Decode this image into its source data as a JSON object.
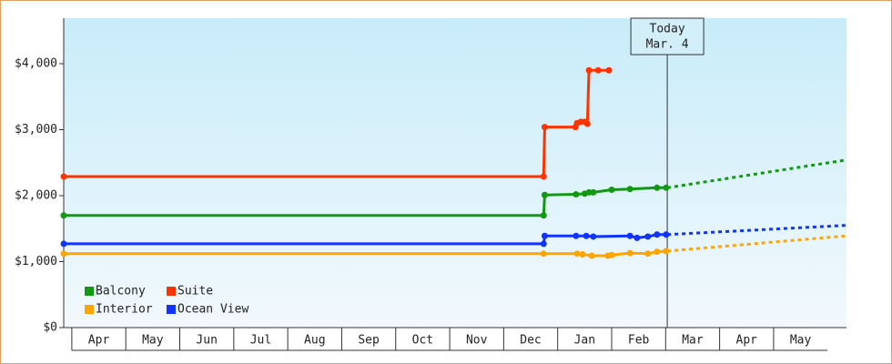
{
  "chart_data": {
    "type": "line",
    "xlim": [
      -0.15,
      14.35
    ],
    "ylim": [
      0,
      4690
    ],
    "yticks": [
      {
        "value": 0,
        "label": "$0"
      },
      {
        "value": 1000,
        "label": "$1,000"
      },
      {
        "value": 2000,
        "label": "$2,000"
      },
      {
        "value": 3000,
        "label": "$3,000"
      },
      {
        "value": 4000,
        "label": "$4,000"
      }
    ],
    "xticks": [
      {
        "value": 0.5,
        "label": "Apr"
      },
      {
        "value": 1.5,
        "label": "May"
      },
      {
        "value": 2.5,
        "label": "Jun"
      },
      {
        "value": 3.5,
        "label": "Jul"
      },
      {
        "value": 4.5,
        "label": "Aug"
      },
      {
        "value": 5.5,
        "label": "Sep"
      },
      {
        "value": 6.5,
        "label": "Oct"
      },
      {
        "value": 7.5,
        "label": "Nov"
      },
      {
        "value": 8.5,
        "label": "Dec"
      },
      {
        "value": 9.5,
        "label": "Jan"
      },
      {
        "value": 10.5,
        "label": "Feb"
      },
      {
        "value": 11.5,
        "label": "Mar"
      },
      {
        "value": 12.5,
        "label": "Apr"
      },
      {
        "value": 13.5,
        "label": "May"
      }
    ],
    "legend": "bottom-left",
    "annotation": {
      "lines": [
        "Today",
        "Mar. 4"
      ],
      "x": 11.03
    },
    "series": [
      {
        "name": "Balcony",
        "color": "#119911",
        "x": [
          -0.15,
          8.74,
          8.76,
          9.34,
          9.5,
          9.58,
          9.66,
          10.0,
          10.34,
          10.84,
          11.01
        ],
        "values": [
          1700,
          1700,
          2010,
          2020,
          2030,
          2050,
          2050,
          2090,
          2100,
          2120,
          2120
        ],
        "forecast": {
          "x": [
            11.03,
            14.34
          ],
          "values": [
            2120,
            2540
          ]
        }
      },
      {
        "name": "Suite",
        "color": "#ff3300",
        "x": [
          -0.15,
          8.74,
          8.76,
          9.33,
          9.36,
          9.43,
          9.5,
          9.55,
          9.58,
          9.75,
          9.95
        ],
        "values": [
          2290,
          2290,
          3040,
          3040,
          3100,
          3120,
          3120,
          3090,
          3900,
          3900,
          3900
        ]
      },
      {
        "name": "Interior",
        "color": "#ffa500",
        "x": [
          -0.15,
          8.74,
          9.36,
          9.46,
          9.63,
          9.93,
          10.0,
          10.34,
          10.67,
          10.84,
          11.01
        ],
        "values": [
          1120,
          1120,
          1120,
          1110,
          1090,
          1090,
          1100,
          1130,
          1120,
          1150,
          1160
        ],
        "forecast": {
          "x": [
            11.03,
            14.34
          ],
          "values": [
            1160,
            1390
          ]
        }
      },
      {
        "name": "Ocean View",
        "color": "#1133ff",
        "x": [
          -0.15,
          8.74,
          8.76,
          9.34,
          9.53,
          9.66,
          10.34,
          10.47,
          10.67,
          10.84,
          11.01
        ],
        "values": [
          1270,
          1270,
          1390,
          1390,
          1390,
          1380,
          1390,
          1360,
          1380,
          1410,
          1410
        ],
        "forecast": {
          "x": [
            11.03,
            14.34
          ],
          "values": [
            1410,
            1550
          ]
        }
      }
    ]
  }
}
